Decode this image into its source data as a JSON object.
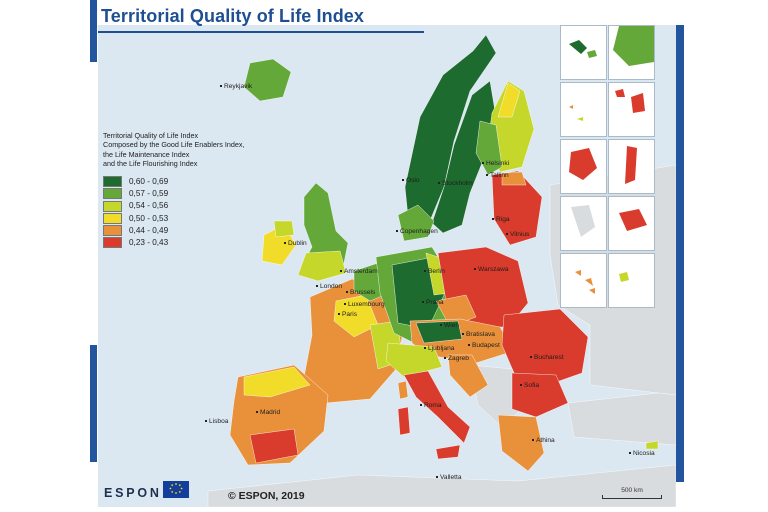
{
  "title": "Territorial Quality of Life Index",
  "legend": {
    "heading": "Territorial Quality of Life Index",
    "subtitle_lines": [
      "Composed by the Good Life Enablers Index,",
      "the Life Maintenance Index",
      "and the Life Flourishing Index"
    ],
    "classes": [
      {
        "label": "0,60 - 0,69",
        "color": "#1d6b2f"
      },
      {
        "label": "0,57 - 0,59",
        "color": "#64a83a"
      },
      {
        "label": "0,54 - 0,56",
        "color": "#c6d72c"
      },
      {
        "label": "0,50 - 0,53",
        "color": "#f2dc2a"
      },
      {
        "label": "0,44 - 0,49",
        "color": "#e8913a"
      },
      {
        "label": "0,23 - 0,43",
        "color": "#d93b2c"
      }
    ]
  },
  "map": {
    "background_color": "#dbe7f1",
    "non_espon_land_color": "#d9dcdf"
  },
  "cities": [
    {
      "name": "Reykjavik"
    },
    {
      "name": "Helsinki"
    },
    {
      "name": "Tallinn"
    },
    {
      "name": "Stockholm"
    },
    {
      "name": "Oslo"
    },
    {
      "name": "Copenhagen"
    },
    {
      "name": "Dublin"
    },
    {
      "name": "Amsterdam"
    },
    {
      "name": "Berlin"
    },
    {
      "name": "London"
    },
    {
      "name": "Brussels"
    },
    {
      "name": "Luxembourg"
    },
    {
      "name": "Paris"
    },
    {
      "name": "Warszawa"
    },
    {
      "name": "Praha"
    },
    {
      "name": "Vilnius"
    },
    {
      "name": "Riga"
    },
    {
      "name": "Wien"
    },
    {
      "name": "Bratislava"
    },
    {
      "name": "Budapest"
    },
    {
      "name": "Ljubljana"
    },
    {
      "name": "Zagreb"
    },
    {
      "name": "Bucharest"
    },
    {
      "name": "Sofia"
    },
    {
      "name": "Madrid"
    },
    {
      "name": "Lisboa"
    },
    {
      "name": "Roma"
    },
    {
      "name": "Athina"
    },
    {
      "name": "Valletta"
    },
    {
      "name": "Nicosia"
    }
  ],
  "copyright": "© ESPON, 2019",
  "scale_bar": {
    "label": "500 km"
  },
  "logos": {
    "espon": "ESPON"
  },
  "brand_colors": {
    "title_blue": "#1f4f93",
    "frame_blue": "#23559f"
  }
}
